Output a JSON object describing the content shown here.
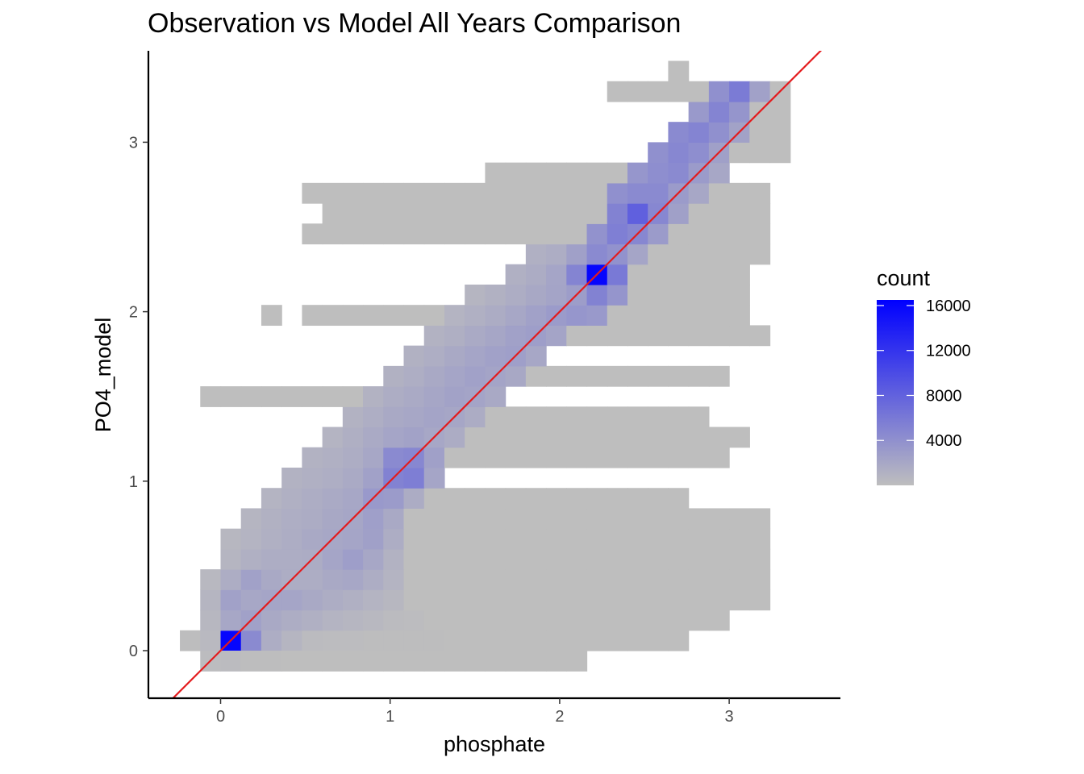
{
  "chart_data": {
    "type": "heatmap",
    "title": "Observation vs Model All Years Comparison",
    "xlabel": "phosphate",
    "ylabel": "PO4_model",
    "x_ticks": [
      0,
      1,
      2,
      3
    ],
    "y_ticks": [
      0,
      1,
      2,
      3
    ],
    "xlim": [
      -0.42,
      3.66
    ],
    "ylim": [
      -0.28,
      3.52
    ],
    "bin_width": 0.12,
    "grid": false,
    "reference_line": {
      "slope": 1,
      "intercept": 0,
      "color": "#e41a1c"
    },
    "colors": {
      "low": "#bebebe",
      "high": "#0000ff",
      "line": "#e41a1c"
    },
    "legend": {
      "title": "count",
      "position": "right",
      "min": 0,
      "max": 16500,
      "breaks": [
        4000,
        8000,
        12000,
        16000
      ]
    },
    "bins": [
      [
        -0.18,
        0.06,
        50
      ],
      [
        0.06,
        0.06,
        16000
      ],
      [
        0.18,
        0.06,
        4500
      ],
      [
        0.3,
        0.06,
        1500
      ],
      [
        0.42,
        0.06,
        800
      ],
      [
        0.54,
        0.06,
        300
      ],
      [
        0.66,
        0.06,
        200
      ],
      [
        0.78,
        0.06,
        150
      ],
      [
        0.9,
        0.06,
        100
      ],
      [
        1.02,
        0.06,
        80
      ],
      [
        1.14,
        0.06,
        60
      ],
      [
        1.26,
        0.06,
        50
      ],
      [
        1.38,
        0.06,
        40
      ],
      [
        1.5,
        0.06,
        30
      ],
      [
        1.62,
        0.06,
        30
      ],
      [
        1.74,
        0.06,
        20
      ],
      [
        1.86,
        0.06,
        20
      ],
      [
        1.98,
        0.06,
        20
      ],
      [
        2.1,
        0.06,
        10
      ],
      [
        -0.06,
        0.06,
        400
      ],
      [
        -0.06,
        -0.06,
        200
      ],
      [
        0.06,
        -0.06,
        300
      ],
      [
        0.18,
        -0.06,
        100
      ],
      [
        0.3,
        -0.06,
        50
      ],
      [
        0.9,
        -0.06,
        20
      ],
      [
        -0.06,
        0.18,
        600
      ],
      [
        0.06,
        0.18,
        2000
      ],
      [
        0.18,
        0.18,
        2500
      ],
      [
        0.3,
        0.18,
        1800
      ],
      [
        0.42,
        0.18,
        1500
      ],
      [
        0.54,
        0.18,
        1200
      ],
      [
        0.66,
        0.18,
        900
      ],
      [
        0.78,
        0.18,
        700
      ],
      [
        0.9,
        0.18,
        500
      ],
      [
        1.02,
        0.18,
        300
      ],
      [
        1.14,
        0.18,
        200
      ],
      [
        -0.06,
        0.3,
        800
      ],
      [
        0.06,
        0.3,
        2500
      ],
      [
        0.18,
        0.3,
        2000
      ],
      [
        0.3,
        0.3,
        2200
      ],
      [
        0.42,
        0.3,
        2200
      ],
      [
        0.54,
        0.3,
        1800
      ],
      [
        0.66,
        0.3,
        1500
      ],
      [
        0.78,
        0.3,
        1200
      ],
      [
        0.9,
        0.3,
        900
      ],
      [
        1.02,
        0.3,
        600
      ],
      [
        -0.06,
        0.42,
        500
      ],
      [
        0.06,
        0.42,
        1500
      ],
      [
        0.18,
        0.42,
        2500
      ],
      [
        0.3,
        0.42,
        1800
      ],
      [
        0.42,
        0.42,
        1500
      ],
      [
        0.54,
        0.42,
        1500
      ],
      [
        0.66,
        0.42,
        1800
      ],
      [
        0.78,
        0.42,
        2000
      ],
      [
        0.9,
        0.42,
        1500
      ],
      [
        1.02,
        0.42,
        900
      ],
      [
        0.06,
        0.54,
        800
      ],
      [
        0.18,
        0.54,
        1200
      ],
      [
        0.3,
        0.54,
        1500
      ],
      [
        0.42,
        0.54,
        1500
      ],
      [
        0.54,
        0.54,
        1600
      ],
      [
        0.66,
        0.54,
        2200
      ],
      [
        0.78,
        0.54,
        2800
      ],
      [
        0.9,
        0.54,
        2000
      ],
      [
        1.02,
        0.54,
        1000
      ],
      [
        0.06,
        0.66,
        600
      ],
      [
        0.18,
        0.66,
        900
      ],
      [
        0.3,
        0.66,
        1200
      ],
      [
        0.42,
        0.66,
        1500
      ],
      [
        0.54,
        0.66,
        1800
      ],
      [
        0.66,
        0.66,
        2000
      ],
      [
        0.78,
        0.66,
        2200
      ],
      [
        0.9,
        0.66,
        2600
      ],
      [
        1.02,
        0.66,
        1500
      ],
      [
        0.18,
        0.78,
        800
      ],
      [
        0.3,
        0.78,
        1100
      ],
      [
        0.42,
        0.78,
        1400
      ],
      [
        0.54,
        0.78,
        1600
      ],
      [
        0.66,
        0.78,
        1900
      ],
      [
        0.78,
        0.78,
        2100
      ],
      [
        0.9,
        0.78,
        2700
      ],
      [
        1.02,
        0.78,
        1800
      ],
      [
        0.3,
        0.9,
        900
      ],
      [
        0.42,
        0.9,
        1200
      ],
      [
        0.54,
        0.9,
        1500
      ],
      [
        0.66,
        0.9,
        1700
      ],
      [
        0.78,
        0.9,
        2000
      ],
      [
        0.9,
        0.9,
        3200
      ],
      [
        1.02,
        0.9,
        3000
      ],
      [
        1.14,
        0.9,
        1600
      ],
      [
        0.42,
        1.02,
        1000
      ],
      [
        0.54,
        1.02,
        1200
      ],
      [
        0.66,
        1.02,
        1400
      ],
      [
        0.78,
        1.02,
        1700
      ],
      [
        0.9,
        1.02,
        2500
      ],
      [
        1.02,
        1.02,
        5200
      ],
      [
        1.14,
        1.02,
        5600
      ],
      [
        1.26,
        1.02,
        2200
      ],
      [
        0.54,
        1.14,
        1000
      ],
      [
        0.66,
        1.14,
        1200
      ],
      [
        0.78,
        1.14,
        1500
      ],
      [
        0.9,
        1.14,
        2000
      ],
      [
        1.02,
        1.14,
        4500
      ],
      [
        1.14,
        1.14,
        4800
      ],
      [
        1.26,
        1.14,
        2600
      ],
      [
        0.66,
        1.26,
        900
      ],
      [
        0.78,
        1.26,
        1300
      ],
      [
        0.9,
        1.26,
        1700
      ],
      [
        1.02,
        1.26,
        2200
      ],
      [
        1.14,
        1.26,
        2400
      ],
      [
        1.26,
        1.26,
        2000
      ],
      [
        1.38,
        1.26,
        1600
      ],
      [
        0.78,
        1.38,
        1000
      ],
      [
        0.9,
        1.38,
        1400
      ],
      [
        1.02,
        1.38,
        1800
      ],
      [
        1.14,
        1.38,
        2000
      ],
      [
        1.26,
        1.38,
        2300
      ],
      [
        1.38,
        1.38,
        2100
      ],
      [
        1.5,
        1.38,
        1600
      ],
      [
        0.9,
        1.5,
        1000
      ],
      [
        1.02,
        1.5,
        1500
      ],
      [
        1.14,
        1.5,
        1700
      ],
      [
        1.26,
        1.5,
        2100
      ],
      [
        1.38,
        1.5,
        2400
      ],
      [
        1.5,
        1.5,
        2300
      ],
      [
        1.62,
        1.5,
        1800
      ],
      [
        1.02,
        1.62,
        1100
      ],
      [
        1.14,
        1.62,
        1400
      ],
      [
        1.26,
        1.62,
        1800
      ],
      [
        1.38,
        1.62,
        2200
      ],
      [
        1.5,
        1.62,
        2500
      ],
      [
        1.62,
        1.62,
        2300
      ],
      [
        1.74,
        1.62,
        1900
      ],
      [
        1.14,
        1.74,
        1100
      ],
      [
        1.26,
        1.74,
        1400
      ],
      [
        1.38,
        1.74,
        1800
      ],
      [
        1.5,
        1.74,
        2200
      ],
      [
        1.62,
        1.74,
        2500
      ],
      [
        1.74,
        1.74,
        2700
      ],
      [
        1.86,
        1.74,
        2000
      ],
      [
        1.26,
        1.86,
        1000
      ],
      [
        1.38,
        1.86,
        1300
      ],
      [
        1.5,
        1.86,
        1700
      ],
      [
        1.62,
        1.86,
        2100
      ],
      [
        1.74,
        1.86,
        2500
      ],
      [
        1.86,
        1.86,
        2800
      ],
      [
        1.98,
        1.86,
        2300
      ],
      [
        1.38,
        1.98,
        900
      ],
      [
        1.5,
        1.98,
        1200
      ],
      [
        1.62,
        1.98,
        1600
      ],
      [
        1.74,
        1.98,
        2000
      ],
      [
        1.86,
        1.98,
        2500
      ],
      [
        1.98,
        1.98,
        3000
      ],
      [
        2.1,
        1.98,
        3500
      ],
      [
        2.22,
        1.98,
        3200
      ],
      [
        1.5,
        2.1,
        800
      ],
      [
        1.62,
        2.1,
        1100
      ],
      [
        1.74,
        2.1,
        1500
      ],
      [
        1.86,
        2.1,
        1900
      ],
      [
        1.98,
        2.1,
        2300
      ],
      [
        2.1,
        2.1,
        2900
      ],
      [
        2.22,
        2.1,
        5200
      ],
      [
        2.34,
        2.1,
        3600
      ],
      [
        1.74,
        2.22,
        1200
      ],
      [
        1.86,
        2.22,
        1600
      ],
      [
        1.98,
        2.22,
        2200
      ],
      [
        2.1,
        2.22,
        5000
      ],
      [
        2.22,
        2.22,
        16000
      ],
      [
        2.34,
        2.22,
        6000
      ],
      [
        1.86,
        2.34,
        1200
      ],
      [
        1.98,
        2.34,
        1500
      ],
      [
        2.1,
        2.34,
        2600
      ],
      [
        2.22,
        2.34,
        4500
      ],
      [
        2.34,
        2.34,
        3800
      ],
      [
        2.46,
        2.34,
        2200
      ],
      [
        2.22,
        2.46,
        3800
      ],
      [
        2.34,
        2.46,
        5500
      ],
      [
        2.46,
        2.46,
        4800
      ],
      [
        2.58,
        2.46,
        3000
      ],
      [
        2.34,
        2.58,
        5200
      ],
      [
        2.46,
        2.58,
        8200
      ],
      [
        2.58,
        2.58,
        4800
      ],
      [
        2.7,
        2.58,
        2600
      ],
      [
        2.34,
        2.7,
        4000
      ],
      [
        2.46,
        2.7,
        4500
      ],
      [
        2.58,
        2.7,
        4500
      ],
      [
        2.7,
        2.7,
        3000
      ],
      [
        2.82,
        2.7,
        2000
      ],
      [
        2.46,
        2.82,
        3500
      ],
      [
        2.58,
        2.82,
        4200
      ],
      [
        2.7,
        2.82,
        4500
      ],
      [
        2.82,
        2.82,
        3000
      ],
      [
        2.94,
        2.82,
        2000
      ],
      [
        2.58,
        2.94,
        4000
      ],
      [
        2.7,
        2.94,
        4800
      ],
      [
        2.82,
        2.94,
        4200
      ],
      [
        2.94,
        2.94,
        2600
      ],
      [
        2.7,
        3.06,
        4500
      ],
      [
        2.82,
        3.06,
        5000
      ],
      [
        2.94,
        3.06,
        4000
      ],
      [
        3.06,
        3.06,
        2400
      ],
      [
        2.82,
        3.18,
        3200
      ],
      [
        2.94,
        3.18,
        5000
      ],
      [
        3.06,
        3.18,
        3600
      ],
      [
        2.94,
        3.3,
        4000
      ],
      [
        3.06,
        3.3,
        5800
      ],
      [
        3.18,
        3.3,
        2500
      ]
    ],
    "support": [
      [
        -0.06,
        1.5
      ],
      [
        0.54,
        2.7
      ],
      [
        0.66,
        2.7
      ],
      [
        0.66,
        2.58
      ],
      [
        0.54,
        2.46
      ],
      [
        0.3,
        1.98
      ],
      [
        0.54,
        1.98
      ],
      [
        1.14,
        2.58
      ],
      [
        1.62,
        2.82
      ],
      [
        1.86,
        2.82
      ],
      [
        1.98,
        2.7
      ],
      [
        2.1,
        2.7
      ],
      [
        2.34,
        3.3
      ],
      [
        2.58,
        3.3
      ],
      [
        2.7,
        3.42
      ],
      [
        3.3,
        3.3
      ],
      [
        3.3,
        3.18
      ],
      [
        3.3,
        3.06
      ],
      [
        3.3,
        2.94
      ],
      [
        3.18,
        2.7
      ],
      [
        3.18,
        2.58
      ],
      [
        3.18,
        2.46
      ],
      [
        3.18,
        2.34
      ],
      [
        3.06,
        2.22
      ],
      [
        3.06,
        2.1
      ],
      [
        3.06,
        1.98
      ],
      [
        3.18,
        1.86
      ],
      [
        2.94,
        1.62
      ],
      [
        2.82,
        1.38
      ],
      [
        3.06,
        1.26
      ],
      [
        2.94,
        1.14
      ],
      [
        2.7,
        0.9
      ],
      [
        3.06,
        0.78
      ],
      [
        3.18,
        0.78
      ],
      [
        3.18,
        0.66
      ],
      [
        3.18,
        0.54
      ],
      [
        3.18,
        0.42
      ],
      [
        3.18,
        0.3
      ],
      [
        2.94,
        0.18
      ],
      [
        2.7,
        0.06
      ],
      [
        2.1,
        -0.06
      ]
    ],
    "gaps": [
      [
        0.54,
        2.22
      ],
      [
        -0.06,
        1.14
      ],
      [
        -0.06,
        0.9
      ],
      [
        0.42,
        1.98
      ]
    ]
  }
}
